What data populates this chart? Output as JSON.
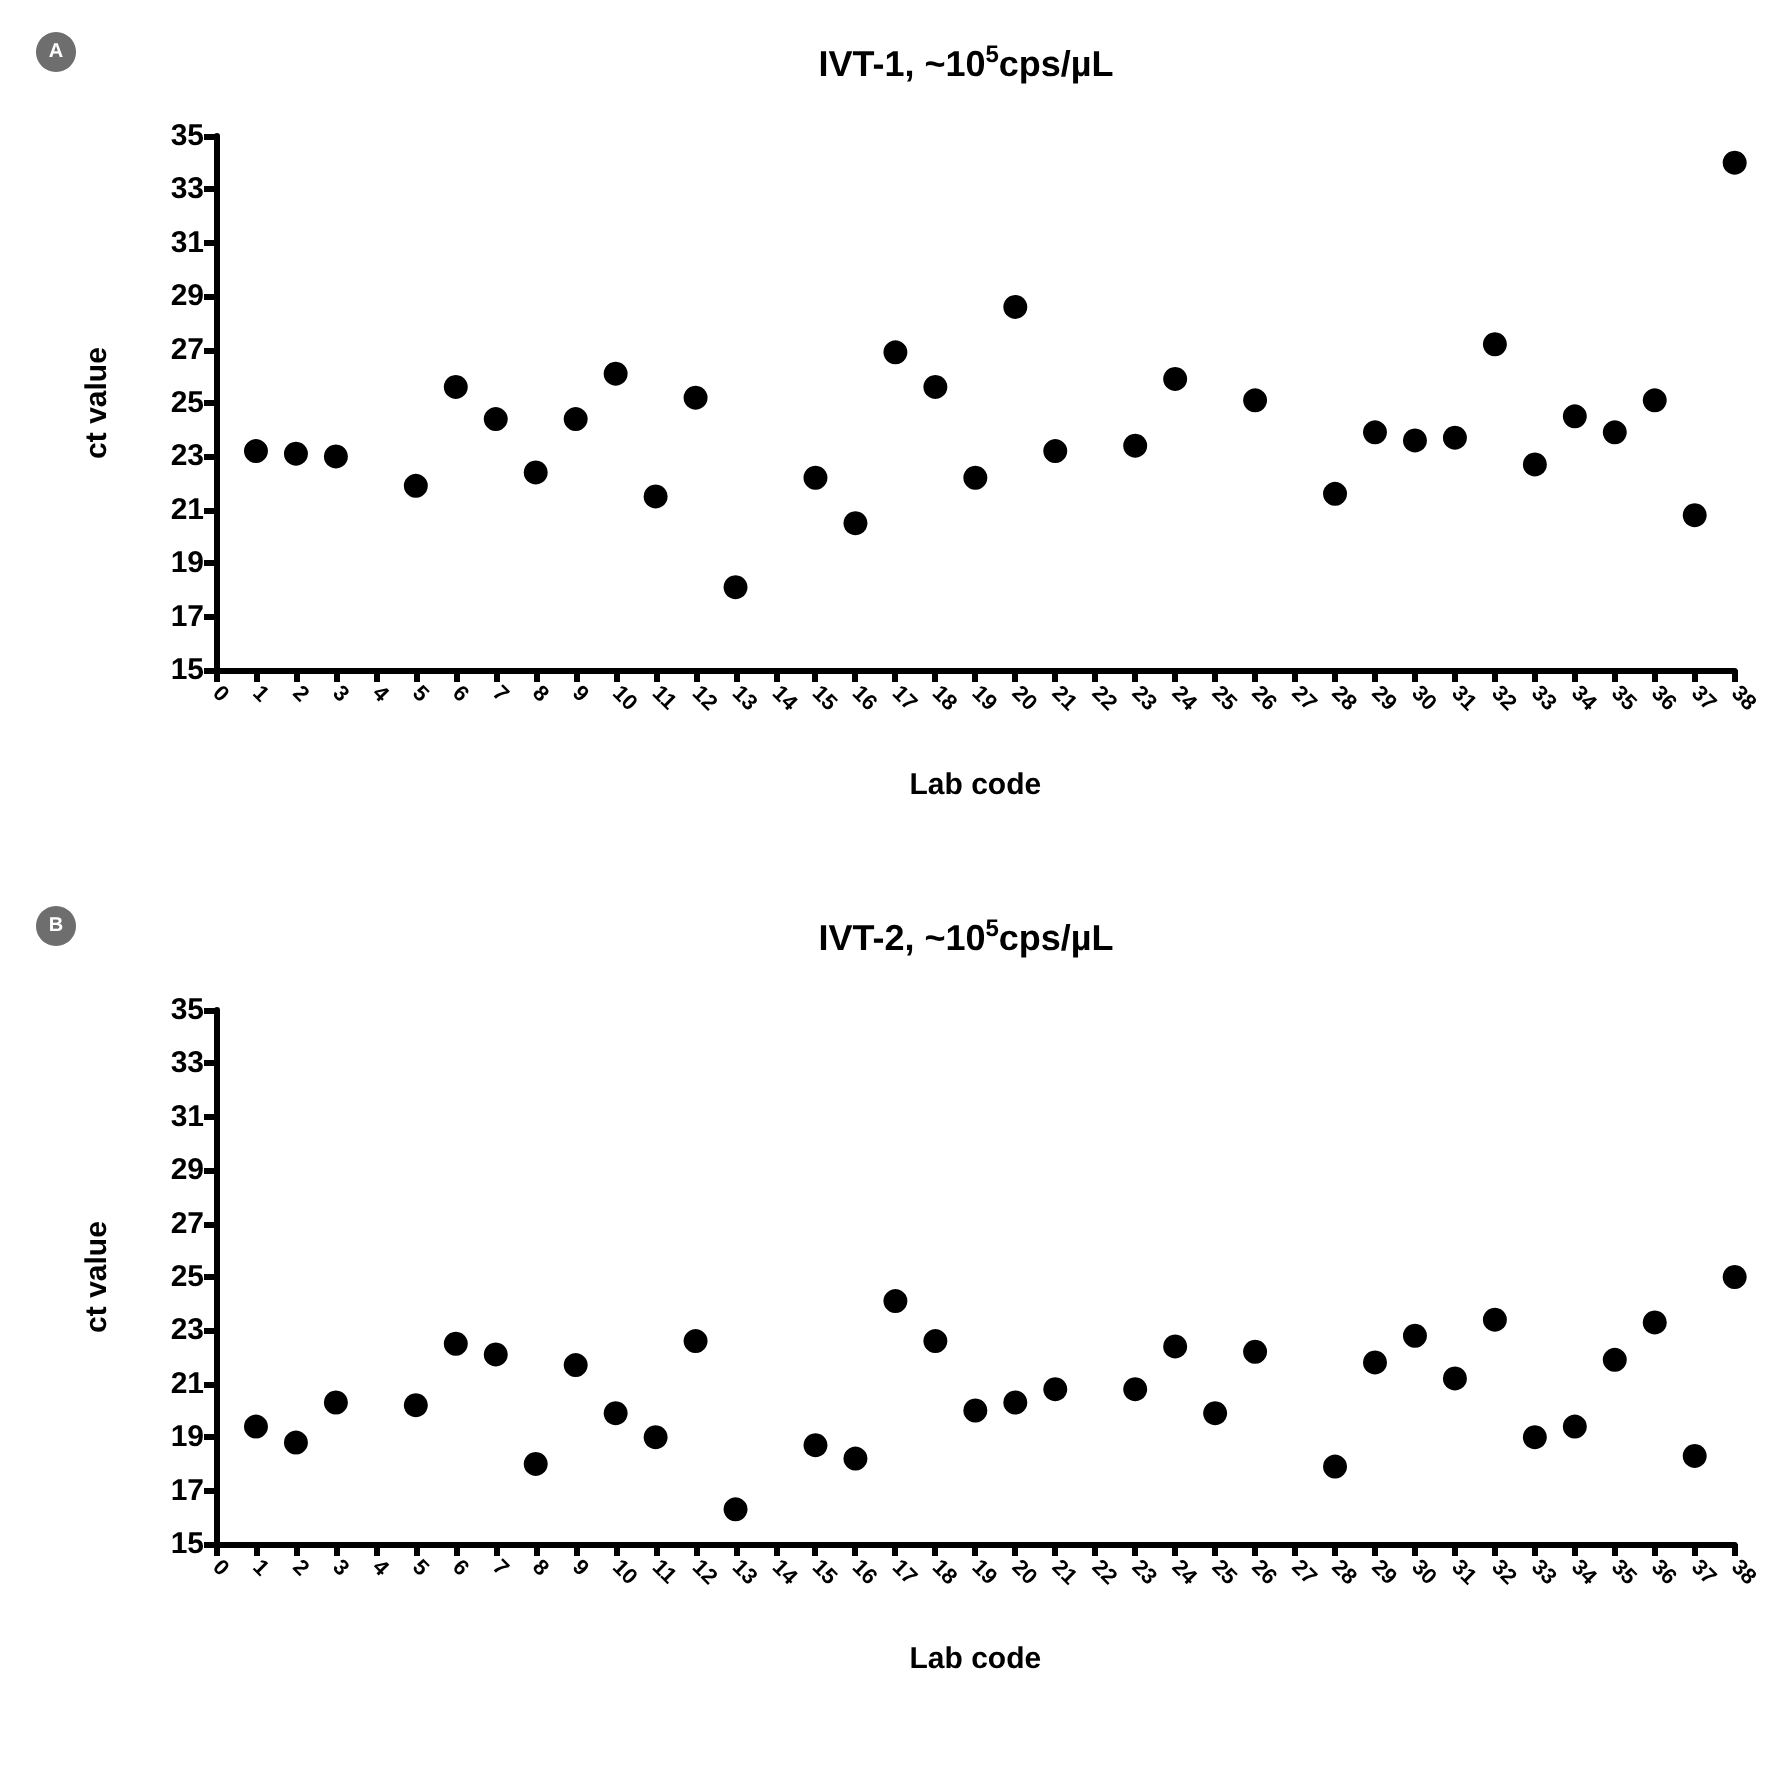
{
  "chart_data": [
    {
      "type": "scatter",
      "title": "IVT-1, ~10$^{5}$cps/µL",
      "xlabel": "Lab code",
      "ylabel": "ct value",
      "annotations": [
        "A"
      ],
      "marker": "circle",
      "xlim": [
        0,
        38
      ],
      "xticks": [
        0,
        1,
        2,
        3,
        4,
        5,
        6,
        7,
        8,
        9,
        10,
        11,
        12,
        13,
        14,
        15,
        16,
        17,
        18,
        19,
        20,
        21,
        22,
        23,
        24,
        25,
        26,
        27,
        28,
        29,
        30,
        31,
        32,
        33,
        34,
        35,
        36,
        37,
        38
      ],
      "ylim": [
        15,
        35
      ],
      "yticks": [
        15,
        17,
        19,
        21,
        23,
        25,
        27,
        29,
        31,
        33,
        35
      ],
      "series": [
        {
          "color": "#000000",
          "x": [
            1,
            2,
            3,
            5,
            6,
            7,
            8,
            9,
            10,
            11,
            12,
            13,
            15,
            16,
            17,
            18,
            19,
            20,
            21,
            23,
            24,
            26,
            28,
            29,
            30,
            31,
            32,
            33,
            34,
            35,
            36,
            37,
            38
          ],
          "values": [
            23.2,
            23.1,
            23.0,
            21.9,
            25.6,
            24.4,
            22.4,
            24.4,
            26.1,
            21.5,
            25.2,
            18.1,
            22.2,
            20.5,
            26.9,
            25.6,
            22.2,
            28.6,
            23.2,
            23.4,
            25.9,
            25.1,
            21.6,
            23.9,
            23.6,
            23.7,
            27.2,
            22.7,
            24.5,
            23.9,
            25.1,
            20.8,
            34.0
          ]
        }
      ]
    },
    {
      "type": "scatter",
      "title": "IVT-2, ~10$^{5}$cps/µL",
      "xlabel": "Lab code",
      "ylabel": "ct value",
      "annotations": [
        "B"
      ],
      "marker": "circle",
      "xlim": [
        0,
        38
      ],
      "xticks": [
        0,
        1,
        2,
        3,
        4,
        5,
        6,
        7,
        8,
        9,
        10,
        11,
        12,
        13,
        14,
        15,
        16,
        17,
        18,
        19,
        20,
        21,
        22,
        23,
        24,
        25,
        26,
        27,
        28,
        29,
        30,
        31,
        32,
        33,
        34,
        35,
        36,
        37,
        38
      ],
      "ylim": [
        15,
        35
      ],
      "yticks": [
        15,
        17,
        19,
        21,
        23,
        25,
        27,
        29,
        31,
        33,
        35
      ],
      "series": [
        {
          "color": "#000000",
          "x": [
            1,
            2,
            3,
            5,
            6,
            7,
            8,
            9,
            10,
            11,
            12,
            13,
            15,
            16,
            17,
            18,
            19,
            20,
            21,
            23,
            24,
            25,
            26,
            28,
            29,
            30,
            31,
            32,
            33,
            34,
            35,
            36,
            37,
            38
          ],
          "values": [
            19.4,
            18.8,
            20.3,
            20.2,
            22.5,
            22.1,
            18.0,
            21.7,
            19.9,
            19.0,
            22.6,
            16.3,
            18.7,
            18.2,
            24.1,
            22.6,
            20.0,
            20.3,
            20.8,
            20.8,
            22.4,
            19.9,
            22.2,
            17.9,
            21.8,
            22.8,
            21.2,
            23.4,
            19.0,
            19.4,
            21.9,
            23.3,
            18.3,
            25.0
          ]
        }
      ]
    }
  ]
}
